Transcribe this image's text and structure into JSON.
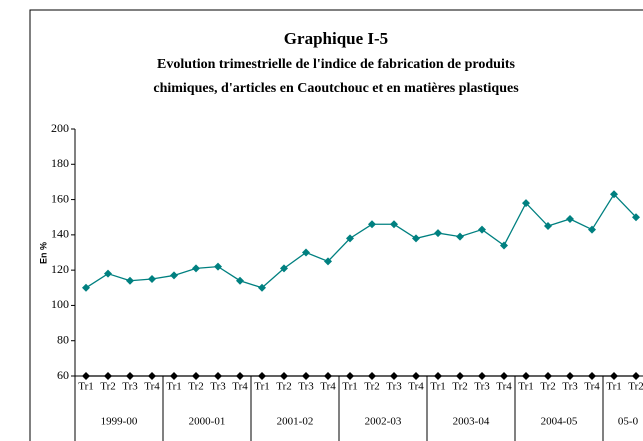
{
  "chart_data": {
    "type": "line",
    "title": "Graphique I-5",
    "subtitle": [
      "Evolution trimestrielle de l'indice de fabrication de produits",
      "chimiques, d'articles en Caoutchouc et en matières plastiques"
    ],
    "y_label": "En %",
    "categories": [
      "Tr1",
      "Tr2",
      "Tr3",
      "Tr4",
      "Tr1",
      "Tr2",
      "Tr3",
      "Tr4",
      "Tr1",
      "Tr2",
      "Tr3",
      "Tr4",
      "Tr1",
      "Tr2",
      "Tr3",
      "Tr4",
      "Tr1",
      "Tr2",
      "Tr3",
      "Tr4",
      "Tr1",
      "Tr2",
      "Tr3",
      "Tr4",
      "Tr1",
      "Tr2"
    ],
    "category_groups": [
      "1999-00",
      "2000-01",
      "2001-02",
      "2002-03",
      "2003-04",
      "2004-05",
      "05-0"
    ],
    "series": [
      {
        "color": "#008080",
        "values": [
          110,
          118,
          114,
          115,
          117,
          121,
          122,
          114,
          110,
          121,
          130,
          125,
          138,
          146,
          146,
          138,
          141,
          139,
          143,
          134,
          158,
          145,
          149,
          143,
          163,
          150
        ]
      },
      {
        "color": "#000000",
        "values": [
          60,
          60,
          60,
          60,
          60,
          60,
          60,
          60,
          60,
          60,
          60,
          60,
          60,
          60,
          60,
          60,
          60,
          60,
          60,
          60,
          60,
          60,
          60,
          60,
          60,
          60
        ]
      }
    ],
    "ylim": [
      60,
      200
    ],
    "yticks": [
      60,
      80,
      100,
      120,
      140,
      160,
      180,
      200
    ]
  }
}
